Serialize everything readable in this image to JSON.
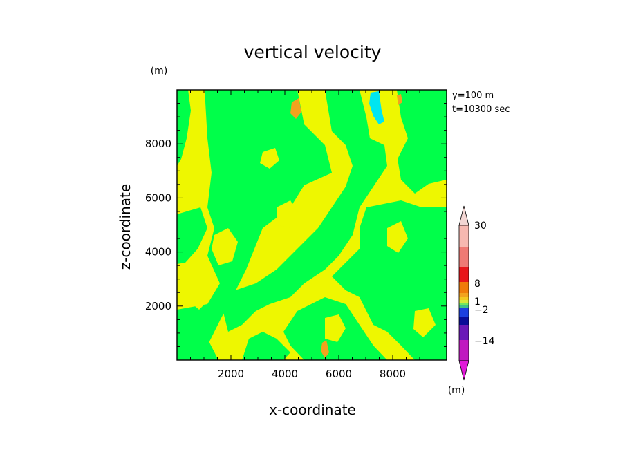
{
  "chart_data": {
    "type": "heatmap",
    "title": "vertical velocity",
    "xlabel": "x-coordinate",
    "ylabel": "z-coordinate",
    "y_unit": "(m)",
    "colorbar_unit": "(m)",
    "annotations": [
      "y=100 m",
      "t=10300 sec"
    ],
    "xlim": [
      0,
      10000
    ],
    "ylim": [
      0,
      10000
    ],
    "x_ticks": [
      2000,
      4000,
      6000,
      8000
    ],
    "y_ticks": [
      2000,
      4000,
      6000,
      8000
    ],
    "x_tick_labels": [
      "2000",
      "4000",
      "6000",
      "8000"
    ],
    "y_tick_labels": [
      "2000",
      "4000",
      "6000",
      "8000"
    ],
    "colorbar": {
      "labels": [
        "30",
        "8",
        "1",
        "−2",
        "−14"
      ],
      "label_values": [
        30,
        8,
        1,
        -2,
        -14
      ],
      "colors_top_to_bottom": [
        "#f7b8b0",
        "#ef7a74",
        "#e8161a",
        "#f07b0a",
        "#f2a21e",
        "#f2c820",
        "#d8e83a",
        "#72e860",
        "#3fc08c",
        "#1c3fe0",
        "#0a0c98",
        "#6a18b8",
        "#c018c0"
      ],
      "extend_top_color": "#f3d6d3",
      "extend_bottom_color": "#e018d8"
    },
    "field_colors": {
      "near_zero_positive": "#eef700",
      "near_zero_negative": "#00ff4a",
      "positive_moderate": "#f2a21e",
      "negative_moderate": "#00e6f0"
    }
  }
}
